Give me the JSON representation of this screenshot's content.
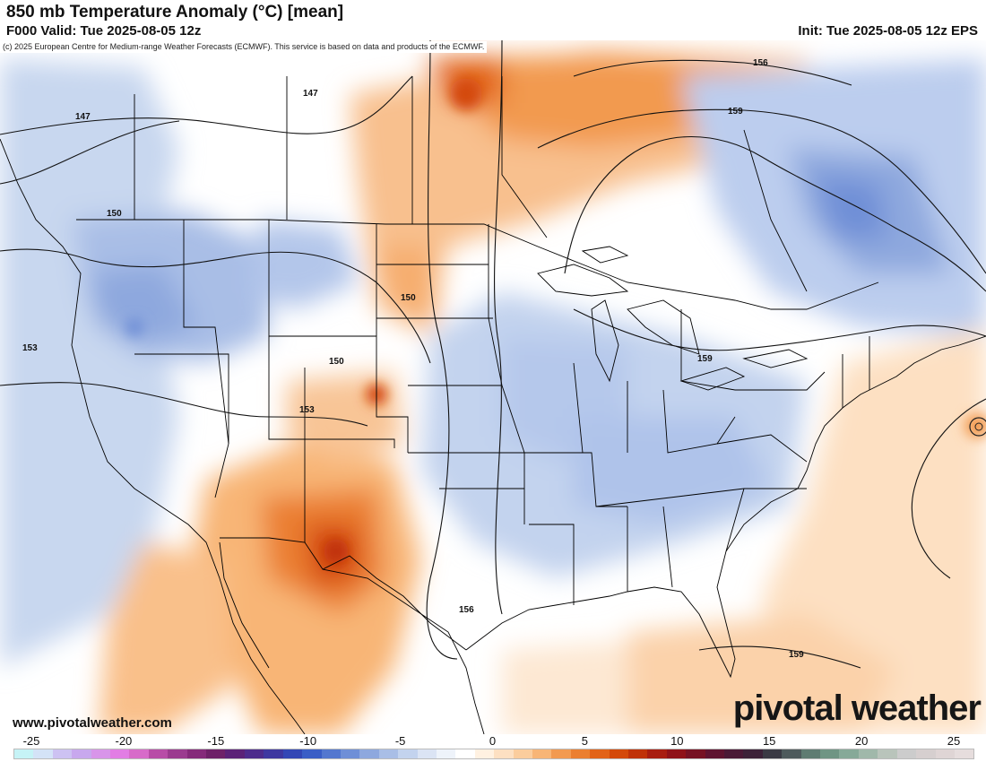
{
  "header": {
    "title": "850 mb Temperature Anomaly (°C) [mean]",
    "valid": "F000 Valid: Tue 2025-08-05 12z",
    "init": "Init: Tue 2025-08-05 12z EPS"
  },
  "map": {
    "copyright": "(c) 2025 European Centre for Medium-range Weather Forecasts (ECMWF). This service is based on data and products of the ECMWF.",
    "contour_labels": [
      {
        "value": "147"
      },
      {
        "value": "147"
      },
      {
        "value": "156"
      },
      {
        "value": "159"
      },
      {
        "value": "150"
      },
      {
        "value": "150"
      },
      {
        "value": "153"
      },
      {
        "value": "150"
      },
      {
        "value": "153"
      },
      {
        "value": "159"
      },
      {
        "value": "156"
      },
      {
        "value": "159"
      }
    ]
  },
  "footer": {
    "site": "www.pivotalweather.com",
    "brand": "pivotal weather"
  },
  "legend": {
    "ticks": [
      "-25",
      "-20",
      "-15",
      "-10",
      "-5",
      "0",
      "5",
      "10",
      "15",
      "20",
      "25"
    ],
    "colors": [
      "#c6f3f6",
      "#d4e3f7",
      "#cdc2f2",
      "#c8a8ee",
      "#d895e9",
      "#e27de4",
      "#d76bc9",
      "#b84da7",
      "#9b3b8f",
      "#852a7a",
      "#6e2168",
      "#5b2277",
      "#4d2c8c",
      "#3e38a0",
      "#3347b5",
      "#3a5ec6",
      "#5377cf",
      "#6f8fd7",
      "#8ea8de",
      "#a9bee6",
      "#c3d3ee",
      "#dbe4f4",
      "#eef3fa",
      "#ffffff",
      "#fff1e1",
      "#fde0c2",
      "#fbcd9d",
      "#f8b576",
      "#f29a50",
      "#eb7f30",
      "#e26318",
      "#d4490a",
      "#c03208",
      "#a81d10",
      "#8f1218",
      "#761223",
      "#5e1430",
      "#4a1a36",
      "#3c2238",
      "#3a3a44",
      "#4e5a5c",
      "#5f7c72",
      "#6f9584",
      "#86a998",
      "#a0b8aa",
      "#b9c4bb",
      "#cccccc",
      "#d6cfcf",
      "#dfd5d5",
      "#e6dddd"
    ]
  }
}
